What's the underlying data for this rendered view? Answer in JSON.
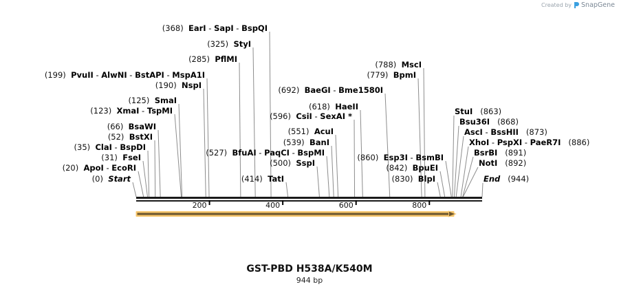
{
  "credit": {
    "prefix": "Created by",
    "brand": "SnapGene",
    "icon": "snapgene-logo-icon"
  },
  "sequence": {
    "name": "GST-PBD H538A/K540M",
    "length_label": "944 bp",
    "length": 944
  },
  "ruler": {
    "ticks": [
      {
        "bp": 200,
        "label": "200"
      },
      {
        "bp": 400,
        "label": "400"
      },
      {
        "bp": 600,
        "label": "600"
      },
      {
        "bp": 800,
        "label": "800"
      }
    ]
  },
  "feature": {
    "name": "GST-PBD ORF arrow",
    "start": 1,
    "end": 868,
    "direction": "forward",
    "fill": "#7a5a2a",
    "outline": "#f5c46a"
  },
  "colors": {
    "backbone": "#1a1a1a",
    "leader": "#8c8c8c",
    "arrow_fill": "#6b5630",
    "arrow_border": "#f7c66b"
  },
  "sites_left": [
    {
      "pos": "(0)",
      "names": [
        "Start"
      ],
      "italic": true,
      "bp": 0
    },
    {
      "pos": "(20)",
      "names": [
        "ApoI",
        "EcoRI"
      ],
      "bp": 20
    },
    {
      "pos": "(31)",
      "names": [
        "FseI"
      ],
      "bp": 31
    },
    {
      "pos": "(35)",
      "names": [
        "ClaI",
        "BspDI"
      ],
      "bp": 35
    },
    {
      "pos": "(52)",
      "names": [
        "BstXI"
      ],
      "bp": 52
    },
    {
      "pos": "(66)",
      "names": [
        "BsaWI"
      ],
      "bp": 66
    },
    {
      "pos": "(123)",
      "names": [
        "XmaI",
        "TspMI"
      ],
      "bp": 123
    },
    {
      "pos": "(125)",
      "names": [
        "SmaI"
      ],
      "bp": 125
    },
    {
      "pos": "(190)",
      "names": [
        "NspI"
      ],
      "bp": 190
    },
    {
      "pos": "(199)",
      "names": [
        "PvuII",
        "AlwNI",
        "BstAPI",
        "MspA1I"
      ],
      "bp": 199
    },
    {
      "pos": "(285)",
      "names": [
        "PflMI"
      ],
      "bp": 285
    },
    {
      "pos": "(325)",
      "names": [
        "StyI"
      ],
      "bp": 325
    },
    {
      "pos": "(368)",
      "names": [
        "EarI",
        "SapI",
        "BspQI"
      ],
      "bp": 368
    },
    {
      "pos": "(414)",
      "names": [
        "TatI"
      ],
      "bp": 414
    },
    {
      "pos": "(500)",
      "names": [
        "SspI"
      ],
      "bp": 500
    },
    {
      "pos": "(527)",
      "names": [
        "BfuAI",
        "PaqCI",
        "BspMI"
      ],
      "bp": 527
    },
    {
      "pos": "(539)",
      "names": [
        "BanI"
      ],
      "bp": 539
    },
    {
      "pos": "(551)",
      "names": [
        "AcuI"
      ],
      "bp": 551
    },
    {
      "pos": "(596)",
      "names": [
        "CsiI",
        "SexAI *"
      ],
      "bp": 596
    },
    {
      "pos": "(618)",
      "names": [
        "HaeII"
      ],
      "bp": 618
    },
    {
      "pos": "(692)",
      "names": [
        "BaeGI",
        "Bme1580I"
      ],
      "bp": 692
    },
    {
      "pos": "(779)",
      "names": [
        "BpmI"
      ],
      "bp": 779
    },
    {
      "pos": "(788)",
      "names": [
        "MscI"
      ],
      "bp": 788
    },
    {
      "pos": "(830)",
      "names": [
        "BlpI"
      ],
      "bp": 830
    },
    {
      "pos": "(842)",
      "names": [
        "BpuEI"
      ],
      "bp": 842
    },
    {
      "pos": "(860)",
      "names": [
        "Esp3I",
        "BsmBI"
      ],
      "bp": 860
    }
  ],
  "sites_right": [
    {
      "pos": "(863)",
      "names": [
        "StuI"
      ],
      "bp": 863
    },
    {
      "pos": "(868)",
      "names": [
        "Bsu36I"
      ],
      "bp": 868
    },
    {
      "pos": "(873)",
      "names": [
        "AscI",
        "BssHII"
      ],
      "bp": 873
    },
    {
      "pos": "(886)",
      "names": [
        "XhoI",
        "PspXI",
        "PaeR7I"
      ],
      "bp": 886
    },
    {
      "pos": "(891)",
      "names": [
        "BsrBI"
      ],
      "bp": 891
    },
    {
      "pos": "(892)",
      "names": [
        "NotI"
      ],
      "bp": 892
    },
    {
      "pos": "(944)",
      "names": [
        "End"
      ],
      "italic": true,
      "bp": 944
    }
  ]
}
